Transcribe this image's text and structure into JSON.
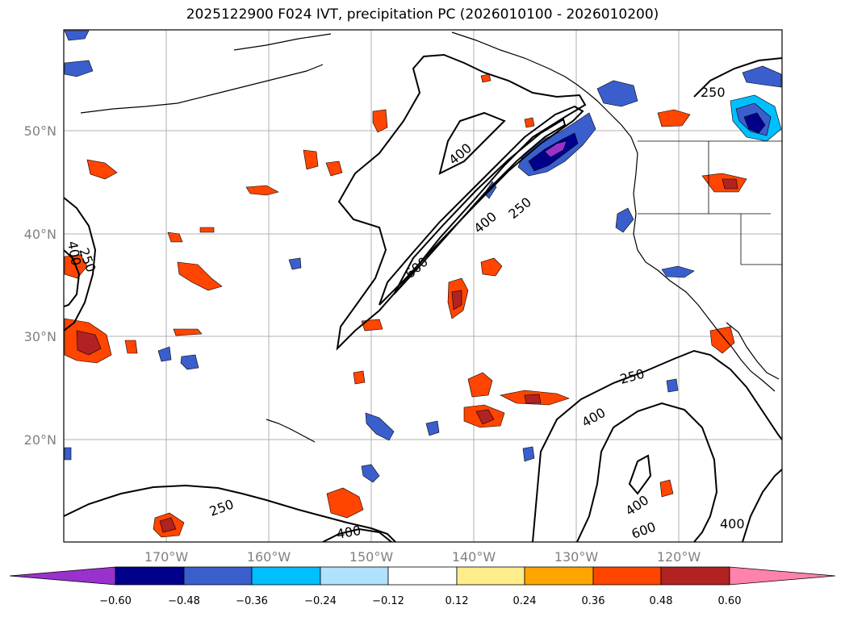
{
  "title": "2025122900 F024 IVT, precipitation PC (2026010100 - 2026010200)",
  "lat_labels": [
    "50°N",
    "40°N",
    "30°N",
    "20°N"
  ],
  "lon_labels": [
    "170°W",
    "160°W",
    "150°W",
    "140°W",
    "130°W",
    "120°W"
  ],
  "contour_labels": [
    "250",
    "400",
    "250",
    "400",
    "600",
    "400",
    "250",
    "400",
    "600",
    "400",
    "250",
    "400",
    "400",
    "250"
  ],
  "colorbar": {
    "ticks": [
      "−0.60",
      "−0.48",
      "−0.36",
      "−0.24",
      "−0.12",
      "0.12",
      "0.24",
      "0.36",
      "0.48",
      "0.60"
    ],
    "colors": [
      "#9932CC",
      "#00008B",
      "#3A5FCD",
      "#00BFFF",
      "#B0E2FF",
      "#FFFFFF",
      "#FFEC8B",
      "#FFA500",
      "#FF4500",
      "#B22222",
      "#FF82AB"
    ]
  }
}
